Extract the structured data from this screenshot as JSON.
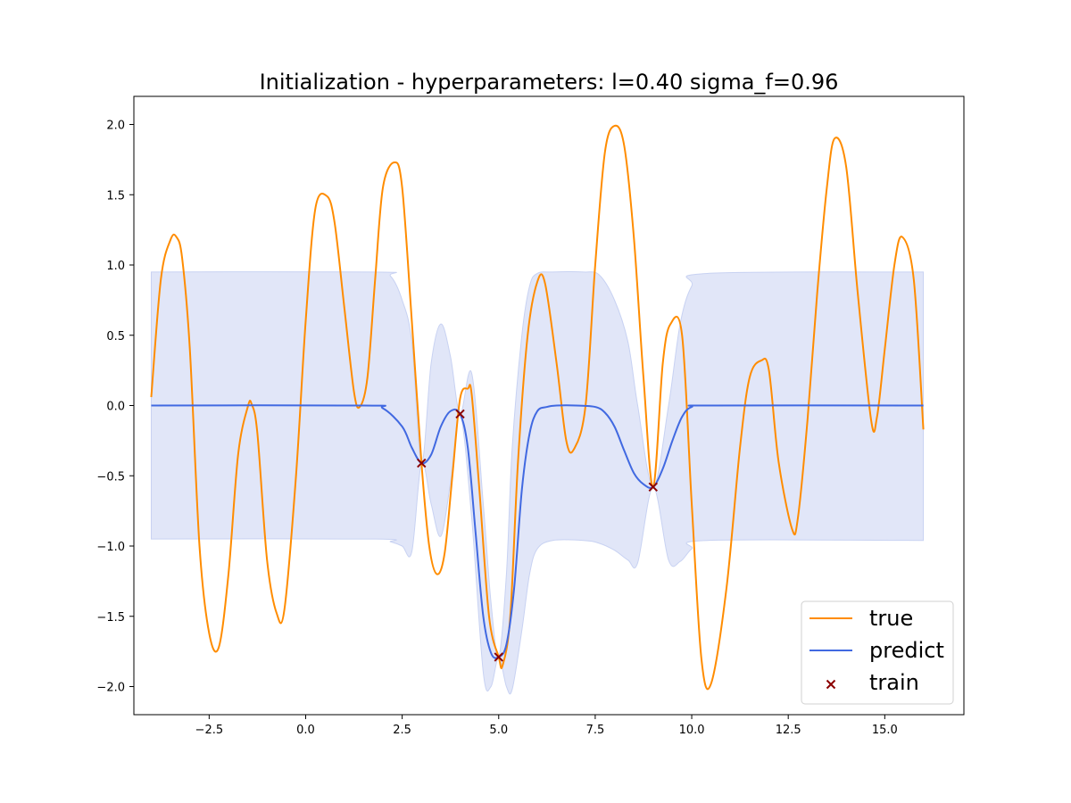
{
  "chart_data": {
    "type": "line",
    "title": "Initialization - hyperparameters:  l=0.40 sigma_f=0.96",
    "xlabel": "",
    "ylabel": "",
    "xlim": [
      -4.45,
      17.05
    ],
    "ylim": [
      -2.2,
      2.2
    ],
    "xticks": [
      -2.5,
      0.0,
      2.5,
      5.0,
      7.5,
      10.0,
      12.5,
      15.0
    ],
    "xtick_labels": [
      "−2.5",
      "0.0",
      "2.5",
      "5.0",
      "7.5",
      "10.0",
      "12.5",
      "15.0"
    ],
    "yticks": [
      -2.0,
      -1.5,
      -1.0,
      -0.5,
      0.0,
      0.5,
      1.0,
      1.5,
      2.0
    ],
    "ytick_labels": [
      "−2.0",
      "−1.5",
      "−1.0",
      "−0.5",
      "0.0",
      "0.5",
      "1.0",
      "1.5",
      "2.0"
    ],
    "grid": false,
    "legend_position": "lower-right",
    "hyperparameters": {
      "l": 0.4,
      "sigma_f": 0.96
    },
    "colors": {
      "true": "#ff8c00",
      "predict": "#4169e1",
      "band": "#c8d2f2",
      "train": "#8b0000"
    },
    "series": [
      {
        "name": "true",
        "type": "line",
        "x": [
          -4.0,
          -3.75,
          -3.5,
          -3.35,
          -3.2,
          -3.0,
          -2.75,
          -2.5,
          -2.25,
          -2.0,
          -1.75,
          -1.5,
          -1.4,
          -1.25,
          -1.0,
          -0.75,
          -0.55,
          -0.25,
          0.0,
          0.25,
          0.55,
          0.75,
          1.0,
          1.25,
          1.4,
          1.6,
          1.8,
          2.0,
          2.3,
          2.5,
          2.75,
          3.0,
          3.2,
          3.4,
          3.6,
          3.8,
          4.0,
          4.2,
          4.3,
          4.5,
          4.75,
          5.0,
          5.1,
          5.3,
          5.5,
          5.75,
          6.0,
          6.2,
          6.5,
          6.75,
          6.95,
          7.25,
          7.5,
          7.75,
          8.0,
          8.25,
          8.5,
          8.75,
          9.0,
          9.25,
          9.45,
          9.75,
          10.0,
          10.25,
          10.5,
          10.9,
          11.25,
          11.5,
          11.8,
          12.0,
          12.25,
          12.6,
          12.75,
          13.0,
          13.25,
          13.5,
          13.7,
          14.0,
          14.3,
          14.65,
          14.8,
          15.0,
          15.25,
          15.45,
          15.75,
          16.0
        ],
        "y": [
          0.06,
          0.9,
          1.18,
          1.2,
          1.05,
          0.4,
          -1.0,
          -1.62,
          -1.72,
          -1.2,
          -0.35,
          -0.01,
          0.01,
          -0.2,
          -1.1,
          -1.48,
          -1.45,
          -0.5,
          0.6,
          1.4,
          1.49,
          1.3,
          0.7,
          0.1,
          -0.01,
          0.2,
          0.9,
          1.55,
          1.73,
          1.55,
          0.6,
          -0.41,
          -1.0,
          -1.2,
          -1.05,
          -0.5,
          0.05,
          0.12,
          0.08,
          -0.6,
          -1.5,
          -1.79,
          -1.85,
          -1.5,
          -0.4,
          0.5,
          0.88,
          0.87,
          0.3,
          -0.25,
          -0.31,
          0.0,
          1.0,
          1.8,
          1.99,
          1.85,
          1.2,
          0.2,
          -0.58,
          0.3,
          0.58,
          0.5,
          -0.7,
          -1.8,
          -1.98,
          -1.3,
          -0.3,
          0.2,
          0.32,
          0.25,
          -0.4,
          -0.88,
          -0.8,
          -0.1,
          0.8,
          1.55,
          1.9,
          1.7,
          0.8,
          -0.11,
          -0.08,
          0.4,
          1.0,
          1.2,
          0.9,
          -0.17
        ]
      },
      {
        "name": "predict",
        "type": "line",
        "x": [
          -4.0,
          1.5,
          2.0,
          2.5,
          2.75,
          3.0,
          3.25,
          3.5,
          3.75,
          4.0,
          4.2,
          4.4,
          4.6,
          4.8,
          5.0,
          5.2,
          5.4,
          5.6,
          5.8,
          6.0,
          6.25,
          6.5,
          7.0,
          7.5,
          7.75,
          8.0,
          8.25,
          8.5,
          8.75,
          9.0,
          9.25,
          9.5,
          9.75,
          10.0,
          10.5,
          16.0
        ],
        "y": [
          0.0,
          0.0,
          -0.02,
          -0.15,
          -0.3,
          -0.41,
          -0.35,
          -0.15,
          -0.04,
          -0.06,
          -0.3,
          -0.9,
          -1.5,
          -1.76,
          -1.79,
          -1.7,
          -1.3,
          -0.6,
          -0.2,
          -0.04,
          -0.01,
          0.0,
          0.0,
          -0.01,
          -0.05,
          -0.15,
          -0.32,
          -0.48,
          -0.56,
          -0.58,
          -0.45,
          -0.25,
          -0.08,
          -0.01,
          0.0,
          0.0
        ]
      },
      {
        "name": "uncertainty",
        "type": "area",
        "x": [
          -4.0,
          1.8,
          2.2,
          2.5,
          2.75,
          3.0,
          3.25,
          3.5,
          3.75,
          4.0,
          4.3,
          4.6,
          4.8,
          5.0,
          5.2,
          5.35,
          5.6,
          5.8,
          6.0,
          6.4,
          7.2,
          7.6,
          8.0,
          8.35,
          8.6,
          9.0,
          9.4,
          9.7,
          10.0,
          10.4,
          16.0
        ],
        "upper": [
          0.95,
          0.95,
          0.92,
          0.75,
          0.45,
          -0.41,
          0.3,
          0.58,
          0.35,
          -0.06,
          0.23,
          -0.7,
          -1.4,
          -1.79,
          -1.2,
          -0.3,
          0.5,
          0.85,
          0.94,
          0.95,
          0.95,
          0.93,
          0.75,
          0.45,
          0.0,
          -0.58,
          0.0,
          0.58,
          0.85,
          0.94,
          0.95
        ],
        "lower": [
          -0.95,
          -0.95,
          -0.97,
          -1.0,
          -1.04,
          -0.41,
          -0.7,
          -0.93,
          -0.55,
          -0.06,
          -0.8,
          -1.9,
          -2.0,
          -1.79,
          -2.0,
          -2.02,
          -1.6,
          -1.2,
          -1.02,
          -0.96,
          -0.96,
          -0.98,
          -1.03,
          -1.1,
          -1.12,
          -0.58,
          -1.1,
          -1.11,
          -1.02,
          -0.96,
          -0.96
        ]
      },
      {
        "name": "train",
        "type": "scatter",
        "x": [
          3.0,
          4.0,
          5.0,
          9.0
        ],
        "y": [
          -0.41,
          -0.06,
          -1.79,
          -0.58
        ]
      }
    ],
    "legend": [
      "true",
      "predict",
      "train"
    ]
  }
}
